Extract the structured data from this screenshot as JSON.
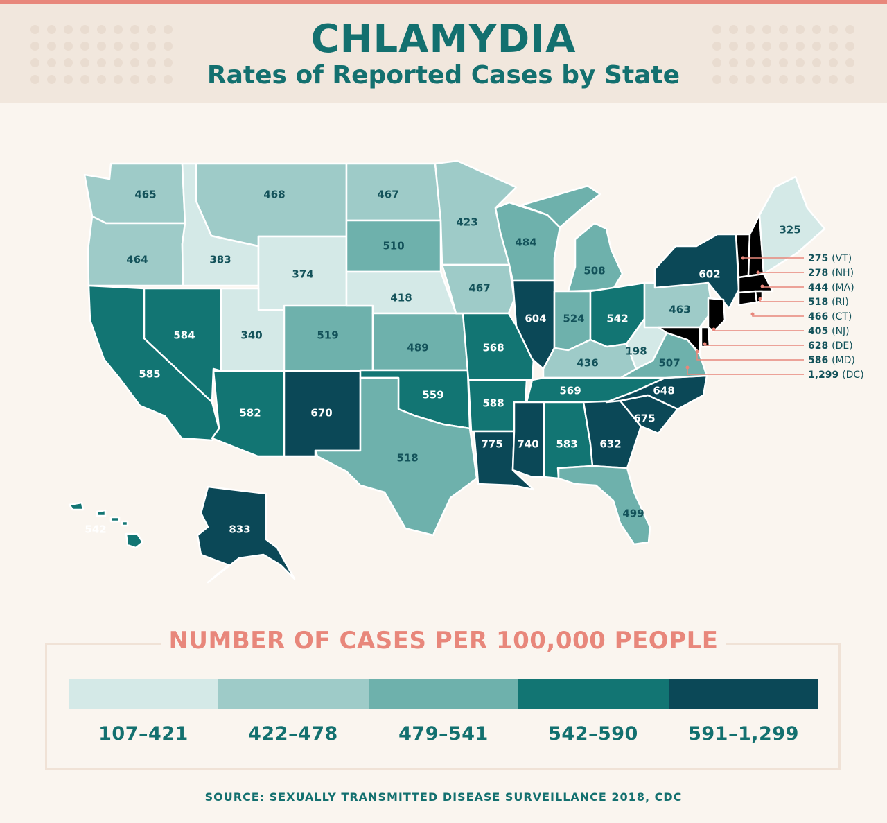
{
  "header": {
    "title": "CHLAMYDIA",
    "subtitle": "Rates of Reported Cases by State"
  },
  "colors": {
    "bin1": "#d4e9e7",
    "bin2": "#9ecbc8",
    "bin3": "#6eb1ac",
    "bin4": "#127573",
    "bin5": "#0b4857",
    "accent": "#e8877b",
    "text": "#13706f"
  },
  "states": [
    {
      "id": "WA",
      "value": "465",
      "bin": 2
    },
    {
      "id": "OR",
      "value": "464",
      "bin": 2
    },
    {
      "id": "CA",
      "value": "585",
      "bin": 4
    },
    {
      "id": "NV",
      "value": "584",
      "bin": 4
    },
    {
      "id": "ID",
      "value": "383",
      "bin": 1
    },
    {
      "id": "MT",
      "value": "468",
      "bin": 2
    },
    {
      "id": "WY",
      "value": "374",
      "bin": 1
    },
    {
      "id": "UT",
      "value": "340",
      "bin": 1
    },
    {
      "id": "AZ",
      "value": "582",
      "bin": 4
    },
    {
      "id": "CO",
      "value": "519",
      "bin": 3
    },
    {
      "id": "NM",
      "value": "670",
      "bin": 5
    },
    {
      "id": "ND",
      "value": "467",
      "bin": 2
    },
    {
      "id": "SD",
      "value": "510",
      "bin": 3
    },
    {
      "id": "NE",
      "value": "418",
      "bin": 1
    },
    {
      "id": "KS",
      "value": "489",
      "bin": 3
    },
    {
      "id": "OK",
      "value": "559",
      "bin": 4
    },
    {
      "id": "TX",
      "value": "518",
      "bin": 3
    },
    {
      "id": "MN",
      "value": "423",
      "bin": 2
    },
    {
      "id": "IA",
      "value": "467",
      "bin": 2
    },
    {
      "id": "MO",
      "value": "568",
      "bin": 4
    },
    {
      "id": "AR",
      "value": "588",
      "bin": 4
    },
    {
      "id": "LA",
      "value": "775",
      "bin": 5
    },
    {
      "id": "WI",
      "value": "484",
      "bin": 3
    },
    {
      "id": "IL",
      "value": "604",
      "bin": 5
    },
    {
      "id": "MI",
      "value": "508",
      "bin": 3
    },
    {
      "id": "IN",
      "value": "524",
      "bin": 3
    },
    {
      "id": "OH",
      "value": "542",
      "bin": 4
    },
    {
      "id": "KY",
      "value": "436",
      "bin": 2
    },
    {
      "id": "TN",
      "value": "569",
      "bin": 4
    },
    {
      "id": "MS",
      "value": "740",
      "bin": 5
    },
    {
      "id": "AL",
      "value": "583",
      "bin": 4
    },
    {
      "id": "GA",
      "value": "632",
      "bin": 5
    },
    {
      "id": "FL",
      "value": "499",
      "bin": 3
    },
    {
      "id": "SC",
      "value": "675",
      "bin": 5
    },
    {
      "id": "NC",
      "value": "648",
      "bin": 5
    },
    {
      "id": "VA",
      "value": "507",
      "bin": 3
    },
    {
      "id": "WV",
      "value": "198",
      "bin": 1
    },
    {
      "id": "PA",
      "value": "463",
      "bin": 2
    },
    {
      "id": "NY",
      "value": "602",
      "bin": 5
    },
    {
      "id": "ME",
      "value": "325",
      "bin": 1
    },
    {
      "id": "AK",
      "value": "833",
      "bin": 5
    },
    {
      "id": "HI",
      "value": "542",
      "bin": 4
    }
  ],
  "northeast_callouts": [
    {
      "value": "275",
      "abbr": "(VT)"
    },
    {
      "value": "278",
      "abbr": "(NH)"
    },
    {
      "value": "444",
      "abbr": "(MA)"
    },
    {
      "value": "518",
      "abbr": "(RI)"
    },
    {
      "value": "466",
      "abbr": "(CT)"
    },
    {
      "value": "405",
      "abbr": "(NJ)"
    },
    {
      "value": "628",
      "abbr": "(DE)"
    },
    {
      "value": "586",
      "abbr": "(MD)"
    },
    {
      "value": "1,299",
      "abbr": "(DC)"
    }
  ],
  "legend": {
    "title": "NUMBER OF CASES PER 100,000 PEOPLE",
    "bins": [
      {
        "label": "107–421",
        "color": "#d4e9e7"
      },
      {
        "label": "422–478",
        "color": "#9ecbc8"
      },
      {
        "label": "479–541",
        "color": "#6eb1ac"
      },
      {
        "label": "542–590",
        "color": "#127573"
      },
      {
        "label": "591–1,299",
        "color": "#0b4857"
      }
    ]
  },
  "source": "SOURCE: SEXUALLY TRANSMITTED DISEASE SURVEILLANCE 2018, CDC"
}
